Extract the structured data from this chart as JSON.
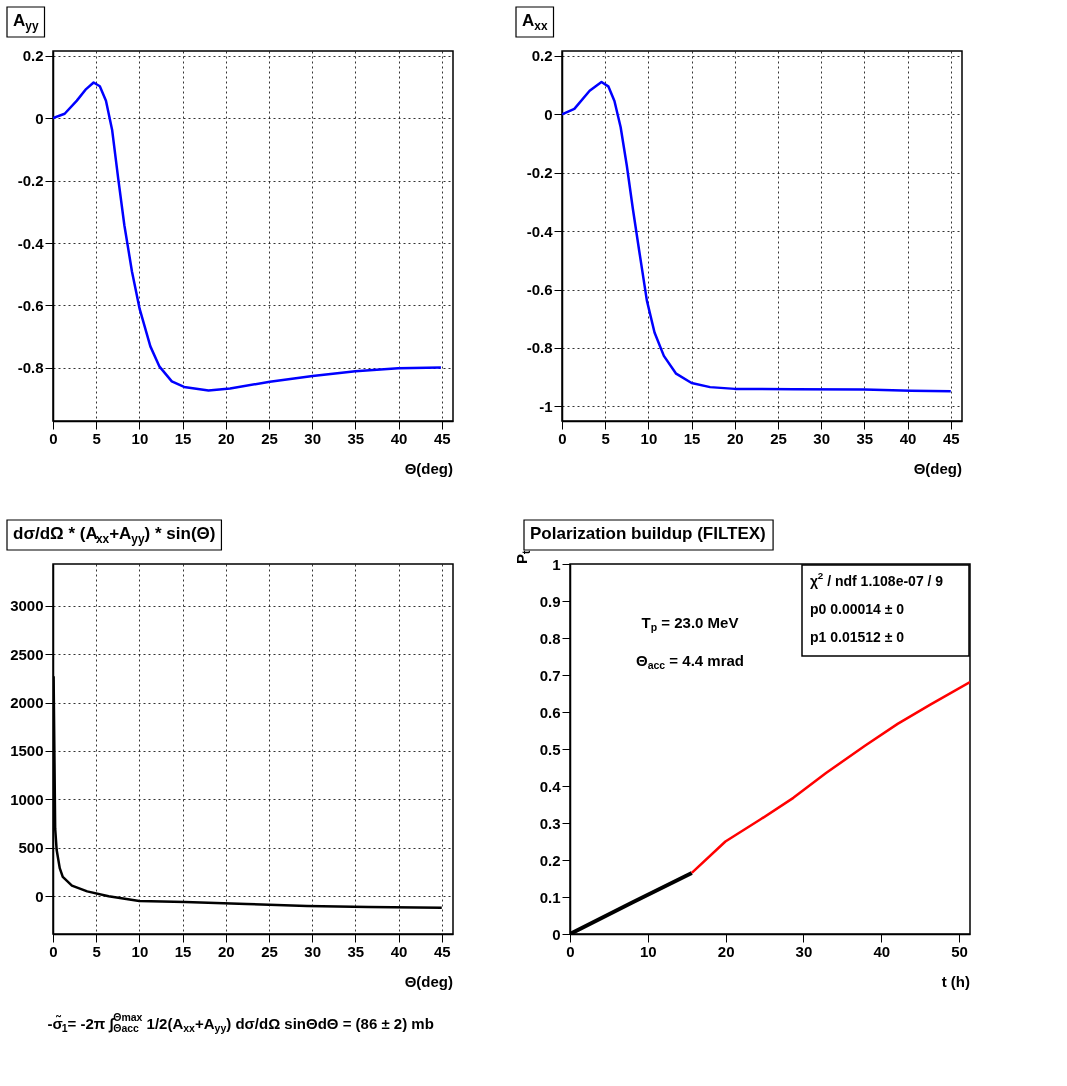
{
  "chart_data": [
    {
      "type": "line",
      "title": "A$_{yy}$",
      "xlabel": "Θ(deg)",
      "xlim": [
        0,
        46.3
      ],
      "xticks": [
        0,
        5,
        10,
        15,
        20,
        25,
        30,
        35,
        40,
        45
      ],
      "ylim": [
        -0.97,
        0.215
      ],
      "yticks": [
        -0.8,
        -0.6,
        -0.4,
        -0.2,
        0,
        0.2
      ],
      "grid": true,
      "series": [
        {
          "color": "#0000ff",
          "x": [
            0,
            1.35,
            2.76,
            3.83,
            4.7,
            5.42,
            6.13,
            6.84,
            7.55,
            8.26,
            9.14,
            10.03,
            11.27,
            12.33,
            13.75,
            15.17,
            18.0,
            20.5,
            25.1,
            30.05,
            35.0,
            39.97,
            44.9
          ],
          "values": [
            0,
            0.014,
            0.056,
            0.093,
            0.114,
            0.102,
            0.056,
            -0.037,
            -0.194,
            -0.343,
            -0.491,
            -0.611,
            -0.731,
            -0.796,
            -0.843,
            -0.861,
            -0.872,
            -0.866,
            -0.844,
            -0.826,
            -0.811,
            -0.801,
            -0.799
          ]
        }
      ]
    },
    {
      "type": "line",
      "title": "A$_{xx}$",
      "xlabel": "Θ(deg)",
      "xlim": [
        0,
        46.3
      ],
      "xticks": [
        0,
        5,
        10,
        15,
        20,
        25,
        30,
        35,
        40,
        45
      ],
      "ylim": [
        -1.05,
        0.217
      ],
      "yticks": [
        -1,
        -0.8,
        -0.6,
        -0.4,
        -0.2,
        0,
        0.2
      ],
      "grid": true,
      "series": [
        {
          "color": "#0000ff",
          "x": [
            0,
            1.43,
            3.2,
            4.57,
            5.36,
            6.07,
            6.79,
            7.5,
            8.21,
            8.93,
            9.82,
            10.71,
            11.79,
            13.21,
            15.0,
            17.14,
            20,
            26.8,
            35,
            40.4,
            45
          ],
          "values": [
            0,
            0.019,
            0.081,
            0.111,
            0.096,
            0.046,
            -0.044,
            -0.175,
            -0.325,
            -0.466,
            -0.637,
            -0.747,
            -0.827,
            -0.888,
            -0.92,
            -0.934,
            -0.94,
            -0.941,
            -0.942,
            -0.946,
            -0.948
          ]
        }
      ]
    },
    {
      "type": "line",
      "title": "dσ/dΩ * (A$_{xx}$+A$_{yy}$) * sin(Θ)",
      "xlabel": "Θ(deg)",
      "xlim": [
        0,
        46.3
      ],
      "xticks": [
        0,
        5,
        10,
        15,
        20,
        25,
        30,
        35,
        40,
        45
      ],
      "ylim": [
        -390,
        3430
      ],
      "yticks": [
        0,
        500,
        1000,
        1500,
        2000,
        2500,
        3000
      ],
      "grid": true,
      "series": [
        {
          "color": "#000000",
          "x": [
            0.07,
            0.25,
            0.42,
            0.78,
            1.13,
            2.19,
            3.96,
            6.44,
            9.98,
            15.3,
            22.4,
            29.4,
            36.5,
            45
          ],
          "values": [
            2270,
            700,
            480,
            290,
            200,
            110,
            50,
            0,
            -50,
            -60,
            -80,
            -100,
            -110,
            -120
          ]
        }
      ],
      "annotations": [
        "-σ̃$_{1}$= -2π ∫$_{Θacc}$$^{Θmax}$ 1/2(A$_{xx}$+A$_{yy}$) dσ/dΩ sinΘdΘ = (86 ± 2) mb"
      ]
    },
    {
      "type": "line",
      "title": "Polarization buildup (FILTEX)",
      "xlabel": "t (h)",
      "ylabel": "P$_{t}$",
      "xlim": [
        0,
        51.4
      ],
      "xticks": [
        0,
        10,
        20,
        30,
        40,
        50
      ],
      "ylim": [
        0,
        1
      ],
      "yticks": [
        0,
        0.1,
        0.2,
        0.3,
        0.4,
        0.5,
        0.6,
        0.7,
        0.8,
        0.9,
        1
      ],
      "series": [
        {
          "color": "#000000",
          "x": [
            0,
            8,
            15.65
          ],
          "values": [
            0,
            0.085,
            0.165
          ]
        },
        {
          "color": "#ff0000",
          "x": [
            15.65,
            19.97,
            24.5,
            28.7,
            32.9,
            37.9,
            42.1,
            46.3,
            51.4
          ],
          "values": [
            0.165,
            0.25,
            0.31,
            0.368,
            0.435,
            0.509,
            0.568,
            0.62,
            0.681
          ]
        }
      ],
      "annotations": [
        "T$_{p}$ = 23.0 MeV",
        "Θ$_{acc}$ = 4.4 mrad",
        "χ$^{2}$ / ndf   1.108e-07 / 9",
        "p0   0.00014 ± 0",
        "p1   0.01512 ± 0"
      ]
    }
  ]
}
